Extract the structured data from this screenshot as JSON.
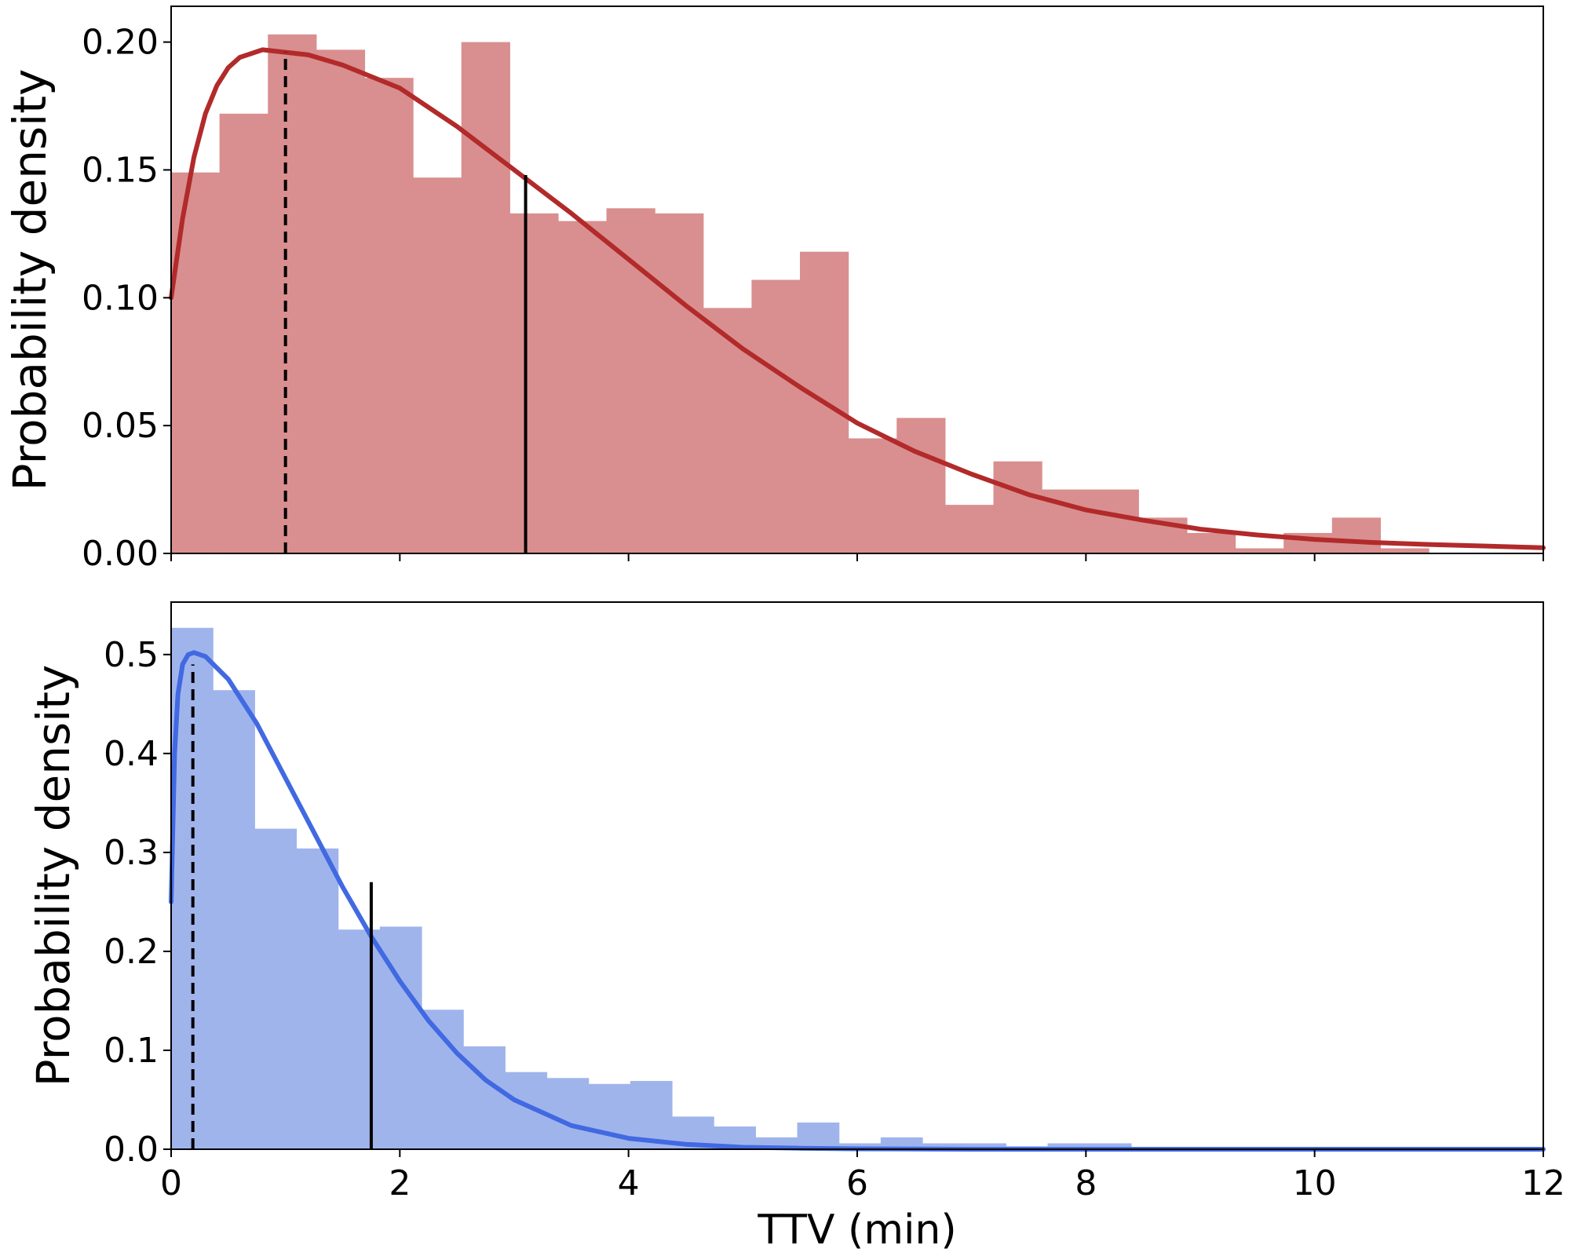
{
  "chart_data": [
    {
      "type": "bar",
      "panel": "top",
      "ylabel": "Probability density",
      "xlim": [
        0,
        12
      ],
      "ylim": [
        0,
        0.214
      ],
      "yticks": [
        "0.00",
        "0.05",
        "0.10",
        "0.15",
        "0.20"
      ],
      "ytick_values": [
        0,
        0.05,
        0.1,
        0.15,
        0.2
      ],
      "xticks": [
        0,
        2,
        4,
        6,
        8,
        10,
        12
      ],
      "bar_color": "#d98f8f",
      "bins": {
        "edges": [
          0,
          0.423,
          0.846,
          1.269,
          1.692,
          2.115,
          2.538,
          2.961,
          3.384,
          3.807,
          4.23,
          4.653,
          5.076,
          5.499,
          5.922,
          6.345,
          6.768,
          7.191,
          7.614,
          8.037,
          8.46,
          8.883,
          9.306,
          9.729,
          10.152,
          10.575,
          10.998
        ],
        "values": [
          0.149,
          0.172,
          0.203,
          0.197,
          0.186,
          0.147,
          0.2,
          0.133,
          0.13,
          0.135,
          0.133,
          0.096,
          0.107,
          0.118,
          0.045,
          0.053,
          0.019,
          0.036,
          0.025,
          0.025,
          0.014,
          0.008,
          0.002,
          0.008,
          0.014,
          0.002
        ]
      },
      "curve": {
        "color": "#b22a2a",
        "x": [
          0,
          0.1,
          0.2,
          0.3,
          0.4,
          0.5,
          0.6,
          0.8,
          1.0,
          1.2,
          1.5,
          2.0,
          2.5,
          3.0,
          3.5,
          4.0,
          4.5,
          5.0,
          5.5,
          6.0,
          6.5,
          7.0,
          7.5,
          8.0,
          8.5,
          9.0,
          9.5,
          10.0,
          10.5,
          11.0,
          11.5,
          12.0
        ],
        "y": [
          0.1,
          0.131,
          0.155,
          0.172,
          0.183,
          0.19,
          0.194,
          0.197,
          0.196,
          0.195,
          0.191,
          0.182,
          0.167,
          0.15,
          0.133,
          0.115,
          0.097,
          0.08,
          0.065,
          0.051,
          0.04,
          0.031,
          0.023,
          0.017,
          0.013,
          0.0095,
          0.0072,
          0.0055,
          0.0043,
          0.0035,
          0.0029,
          0.0022
        ]
      },
      "markers": [
        {
          "x": 1.0,
          "y": 0.196,
          "style": "dashed"
        },
        {
          "x": 3.1,
          "y": 0.148,
          "style": "solid"
        }
      ]
    },
    {
      "type": "bar",
      "panel": "bottom",
      "ylabel": "Probability density",
      "xlabel": "TTV (min)",
      "xlim": [
        0,
        12
      ],
      "ylim": [
        0,
        0.553
      ],
      "yticks": [
        "0.0",
        "0.1",
        "0.2",
        "0.3",
        "0.4",
        "0.5"
      ],
      "ytick_values": [
        0,
        0.1,
        0.2,
        0.3,
        0.4,
        0.5
      ],
      "xticks": [
        0,
        2,
        4,
        6,
        8,
        10,
        12
      ],
      "xticklabels": [
        "0",
        "2",
        "4",
        "6",
        "8",
        "10",
        "12"
      ],
      "bar_color": "#a0b4ec",
      "bins": {
        "edges": [
          0,
          0.365,
          0.73,
          1.095,
          1.46,
          1.825,
          2.19,
          2.555,
          2.92,
          3.285,
          3.65,
          4.015,
          4.38,
          4.745,
          5.11,
          5.475,
          5.84,
          6.205,
          6.57,
          6.935,
          7.3,
          7.665,
          8.03,
          8.395
        ],
        "values": [
          0.527,
          0.464,
          0.324,
          0.304,
          0.222,
          0.225,
          0.141,
          0.104,
          0.078,
          0.072,
          0.066,
          0.069,
          0.033,
          0.023,
          0.012,
          0.027,
          0.006,
          0.012,
          0.006,
          0.006,
          0.003,
          0.006,
          0.006
        ]
      },
      "curve": {
        "color": "#4169e1",
        "x": [
          0,
          0.03,
          0.06,
          0.1,
          0.15,
          0.2,
          0.3,
          0.5,
          0.75,
          1.0,
          1.25,
          1.5,
          1.75,
          2.0,
          2.25,
          2.5,
          2.75,
          3.0,
          3.5,
          4.0,
          4.5,
          5.0,
          5.5,
          6.0,
          7.0,
          8.0,
          10.0,
          12.0
        ],
        "y": [
          0.25,
          0.4,
          0.46,
          0.49,
          0.5,
          0.502,
          0.498,
          0.475,
          0.43,
          0.375,
          0.32,
          0.265,
          0.215,
          0.17,
          0.13,
          0.097,
          0.07,
          0.05,
          0.024,
          0.011,
          0.005,
          0.002,
          0.001,
          0.0004,
          0,
          0,
          0,
          0
        ]
      },
      "markers": [
        {
          "x": 0.19,
          "y": 0.49,
          "style": "dashed"
        },
        {
          "x": 1.75,
          "y": 0.27,
          "style": "solid"
        }
      ]
    }
  ]
}
